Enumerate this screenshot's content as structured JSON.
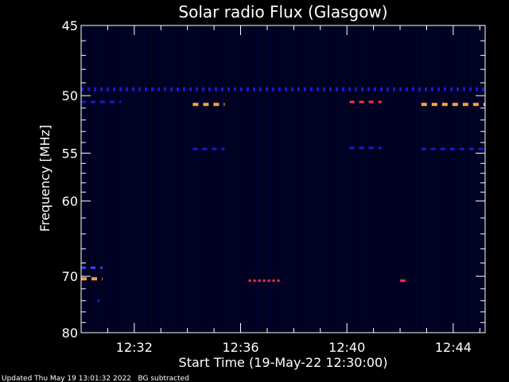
{
  "chart_data": {
    "type": "heatmap",
    "title": "Solar radio Flux (Glasgow)",
    "ylabel": "Frequency [MHz]",
    "xlabel": "Start Time (19-May-22 12:30:00)",
    "footer": "Updated Thu May 19 13:01:32 2022   BG subtracted",
    "x_start": "12:30:00",
    "xlim_minutes": [
      0,
      15.2
    ],
    "ylim": [
      45,
      80
    ],
    "y_major_ticks": [
      {
        "value": 45,
        "label": "45"
      },
      {
        "value": 50,
        "label": "50"
      },
      {
        "value": 55,
        "label": "55"
      },
      {
        "value": 60,
        "label": "60"
      },
      {
        "value": 70,
        "label": "70"
      },
      {
        "value": 80,
        "label": "80"
      }
    ],
    "x_major_ticks": [
      {
        "value": 2,
        "label": "12:32"
      },
      {
        "value": 6,
        "label": "12:36"
      },
      {
        "value": 10,
        "label": "12:40"
      },
      {
        "value": 14,
        "label": "12:44"
      }
    ],
    "colors": {
      "background": "#000020",
      "weak": "#1a1acc",
      "moderate": "#4040ff",
      "strong": "#ff3040",
      "very_strong": "#ffa040",
      "axis": "#ffffff"
    },
    "emission_features": [
      {
        "freq": 49.5,
        "t_start": 0.0,
        "t_end": 15.2,
        "intensity": "weak",
        "pattern": "dashed"
      },
      {
        "freq": 50.5,
        "t_start": 0.0,
        "t_end": 1.5,
        "intensity": "weak",
        "pattern": "dashed"
      },
      {
        "freq": 50.7,
        "t_start": 4.2,
        "t_end": 5.4,
        "intensity": "very_strong",
        "pattern": "dashed"
      },
      {
        "freq": 50.5,
        "t_start": 10.1,
        "t_end": 11.3,
        "intensity": "strong",
        "pattern": "dashed"
      },
      {
        "freq": 50.7,
        "t_start": 12.8,
        "t_end": 15.2,
        "intensity": "very_strong",
        "pattern": "dashed"
      },
      {
        "freq": 54.6,
        "t_start": 4.2,
        "t_end": 5.4,
        "intensity": "weak",
        "pattern": "dashed"
      },
      {
        "freq": 54.5,
        "t_start": 10.1,
        "t_end": 11.3,
        "intensity": "weak",
        "pattern": "dashed"
      },
      {
        "freq": 54.6,
        "t_start": 12.8,
        "t_end": 15.2,
        "intensity": "weak",
        "pattern": "dashed"
      },
      {
        "freq": 68.7,
        "t_start": 0.0,
        "t_end": 0.8,
        "intensity": "moderate",
        "pattern": "dashed"
      },
      {
        "freq": 70.4,
        "t_start": 0.0,
        "t_end": 0.8,
        "intensity": "very_strong",
        "pattern": "dashed"
      },
      {
        "freq": 70.7,
        "t_start": 6.3,
        "t_end": 7.5,
        "intensity": "strong",
        "pattern": "dotted"
      },
      {
        "freq": 70.7,
        "t_start": 12.0,
        "t_end": 12.2,
        "intensity": "strong",
        "pattern": "single"
      },
      {
        "freq": 74.0,
        "t_start": 0.6,
        "t_end": 0.7,
        "intensity": "weak",
        "pattern": "single"
      }
    ]
  }
}
